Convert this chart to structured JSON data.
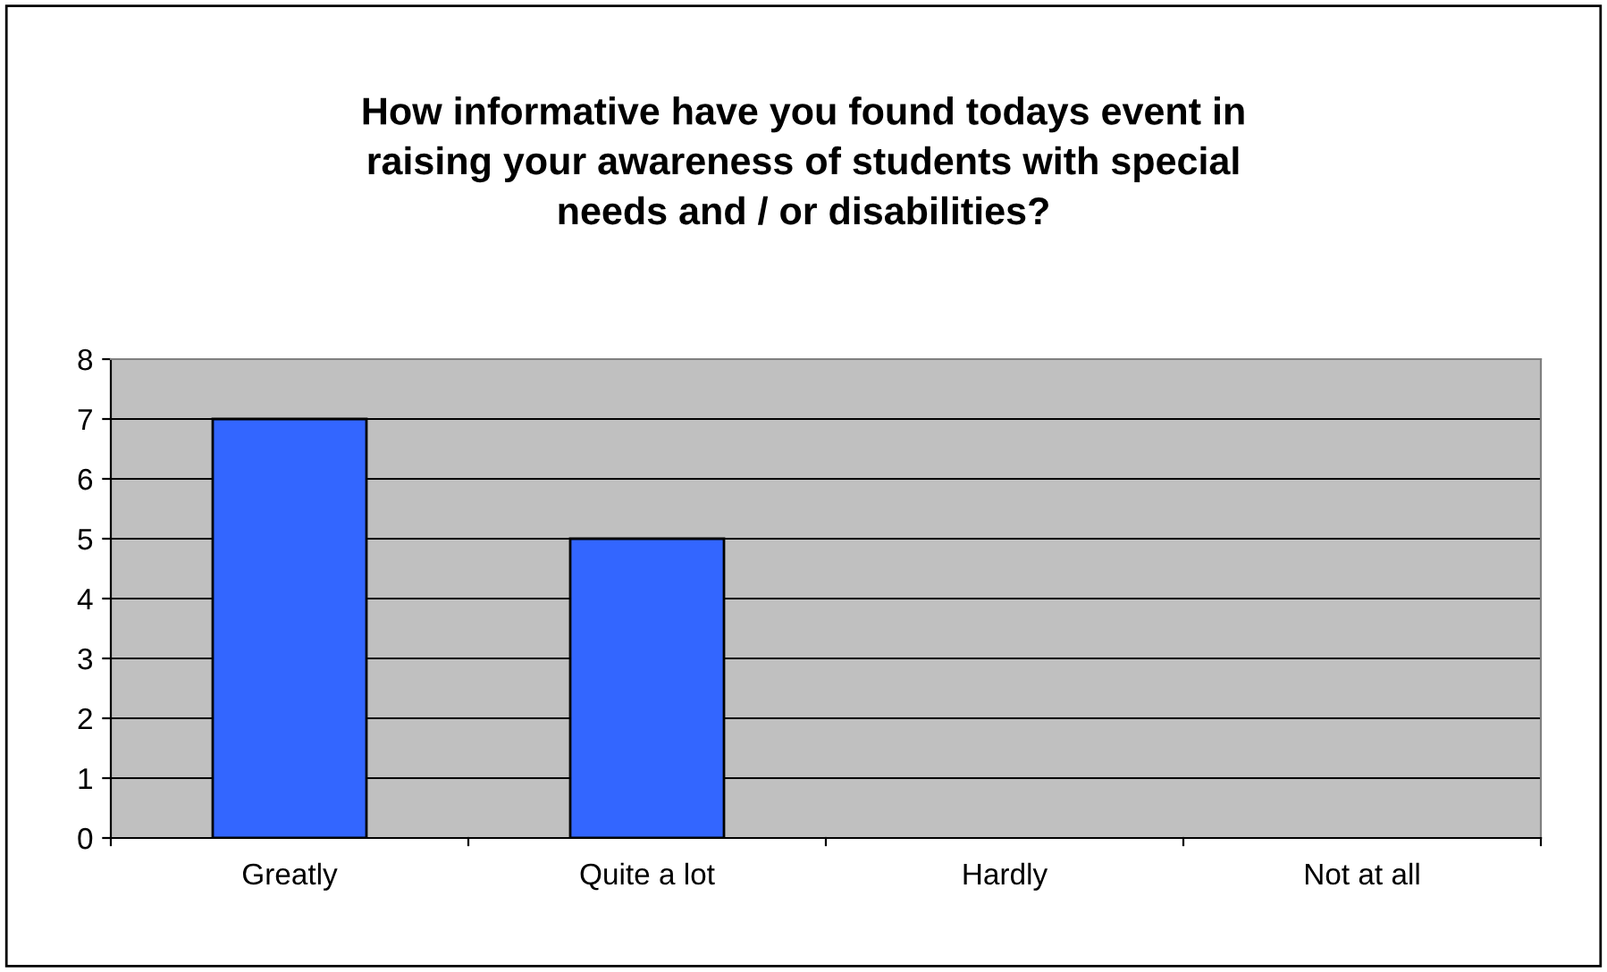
{
  "chart_data": {
    "type": "bar",
    "title": "How informative have you found todays event in\nraising your awareness of students with special\nneeds and / or disabilities?",
    "categories": [
      "Greatly",
      "Quite a lot",
      "Hardly",
      "Not at all"
    ],
    "values": [
      7,
      5,
      0,
      0
    ],
    "color": "#3366ff",
    "ylim": [
      0,
      8
    ],
    "yticks": [
      0,
      1,
      2,
      3,
      4,
      5,
      6,
      7,
      8
    ],
    "grid": "y",
    "legend": false
  }
}
